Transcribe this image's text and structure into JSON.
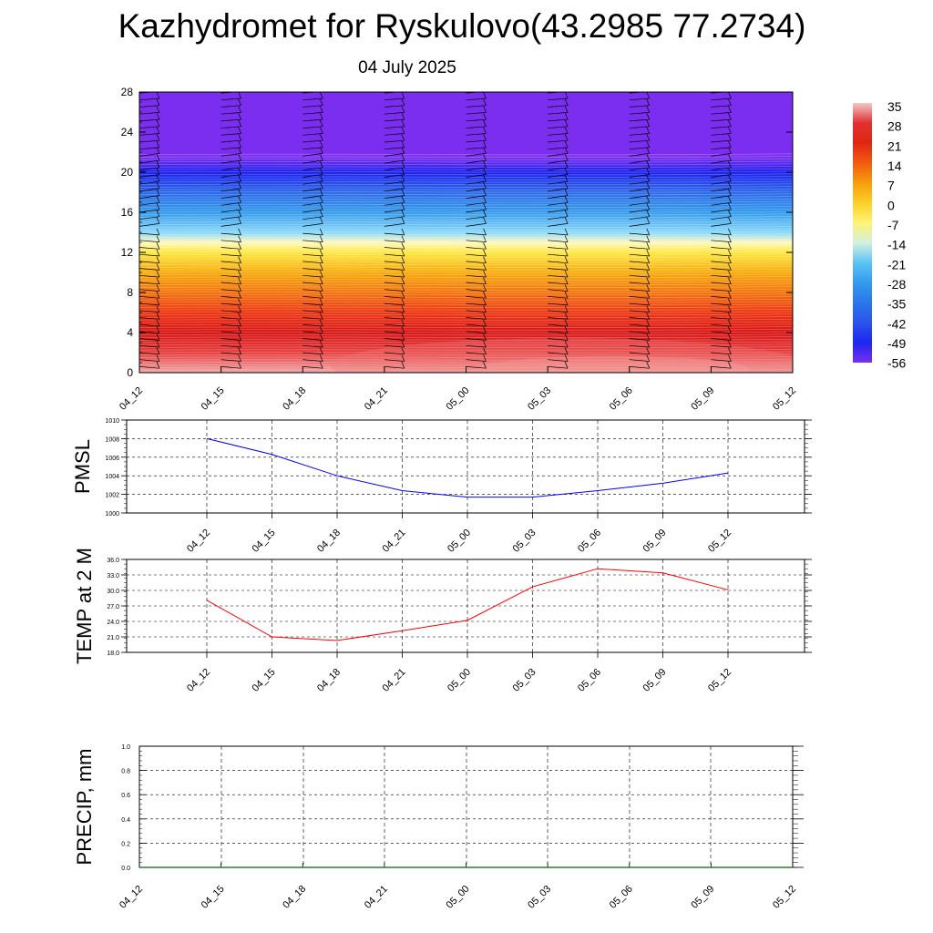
{
  "title": "Kazhydromet for Ryskulovo(43.2985 77.2734)",
  "subtitle": "04 July 2025",
  "chart_data": [
    {
      "id": "upper-air",
      "type": "heatmap",
      "x_ticks": [
        "04_12",
        "04_15",
        "04_18",
        "04_21",
        "05_00",
        "05_03",
        "05_06",
        "05_09",
        "05_12"
      ],
      "y_ticks": [
        "0",
        "4",
        "8",
        "12",
        "16",
        "20",
        "24",
        "28"
      ],
      "ylim": [
        0,
        28
      ],
      "colorbar_labels": [
        "35",
        "28",
        "21",
        "14",
        "7",
        "0",
        "-7",
        "-14",
        "-21",
        "-28",
        "-35",
        "-42",
        "-49",
        "-56"
      ],
      "colorbar_values": [
        35,
        28,
        21,
        14,
        7,
        0,
        -7,
        -14,
        -21,
        -28,
        -35,
        -42,
        -49,
        -56
      ],
      "temperature_profile": [
        {
          "y": 0,
          "t": 34
        },
        {
          "y": 2,
          "t": 30
        },
        {
          "y": 4,
          "t": 24
        },
        {
          "y": 6,
          "t": 18
        },
        {
          "y": 8,
          "t": 12
        },
        {
          "y": 10,
          "t": 5
        },
        {
          "y": 12,
          "t": -3
        },
        {
          "y": 13,
          "t": -12
        },
        {
          "y": 14,
          "t": -18
        },
        {
          "y": 16,
          "t": -28
        },
        {
          "y": 18,
          "t": -38
        },
        {
          "y": 20,
          "t": -50
        },
        {
          "y": 21.5,
          "t": -56
        },
        {
          "y": 28,
          "t": -58
        }
      ],
      "colors": {
        "hot": "#e7353b",
        "cold": "#7b2ef0"
      }
    },
    {
      "id": "pmsl",
      "type": "line",
      "ylabel": "PMSL",
      "x": [
        "04_12",
        "04_15",
        "04_18",
        "04_21",
        "05_00",
        "05_03",
        "05_06",
        "05_09",
        "05_12"
      ],
      "values": [
        1008.0,
        1006.3,
        1004.0,
        1002.4,
        1001.7,
        1001.7,
        1002.4,
        1003.2,
        1004.3
      ],
      "yticks": [
        "1000",
        "1002",
        "1004",
        "1006",
        "1008",
        "1010"
      ],
      "ylim": [
        1000,
        1010
      ],
      "color": "#0000ff"
    },
    {
      "id": "temp2m",
      "type": "line",
      "ylabel": "TEMP at 2 M",
      "x": [
        "04_12",
        "04_15",
        "04_18",
        "04_21",
        "05_00",
        "05_03",
        "05_06",
        "05_09",
        "05_12"
      ],
      "values": [
        28.1,
        21.0,
        20.3,
        22.2,
        24.2,
        30.7,
        34.2,
        33.4,
        30.1
      ],
      "yticks": [
        "18.0",
        "21.0",
        "24.0",
        "27.0",
        "30.0",
        "33.0",
        "36.0"
      ],
      "ylim": [
        18,
        36
      ],
      "color": "#ff0000"
    },
    {
      "id": "precip",
      "type": "line",
      "ylabel": "PRECIP, mm",
      "x": [
        "04_12",
        "04_15",
        "04_18",
        "04_21",
        "05_00",
        "05_03",
        "05_06",
        "05_09",
        "05_12"
      ],
      "values": [
        0,
        0,
        0,
        0,
        0,
        0,
        0,
        0,
        0
      ],
      "yticks": [
        "0.0",
        "0.2",
        "0.4",
        "0.6",
        "0.8",
        "1.0"
      ],
      "ylim": [
        0,
        1
      ],
      "color": "#006400"
    }
  ]
}
